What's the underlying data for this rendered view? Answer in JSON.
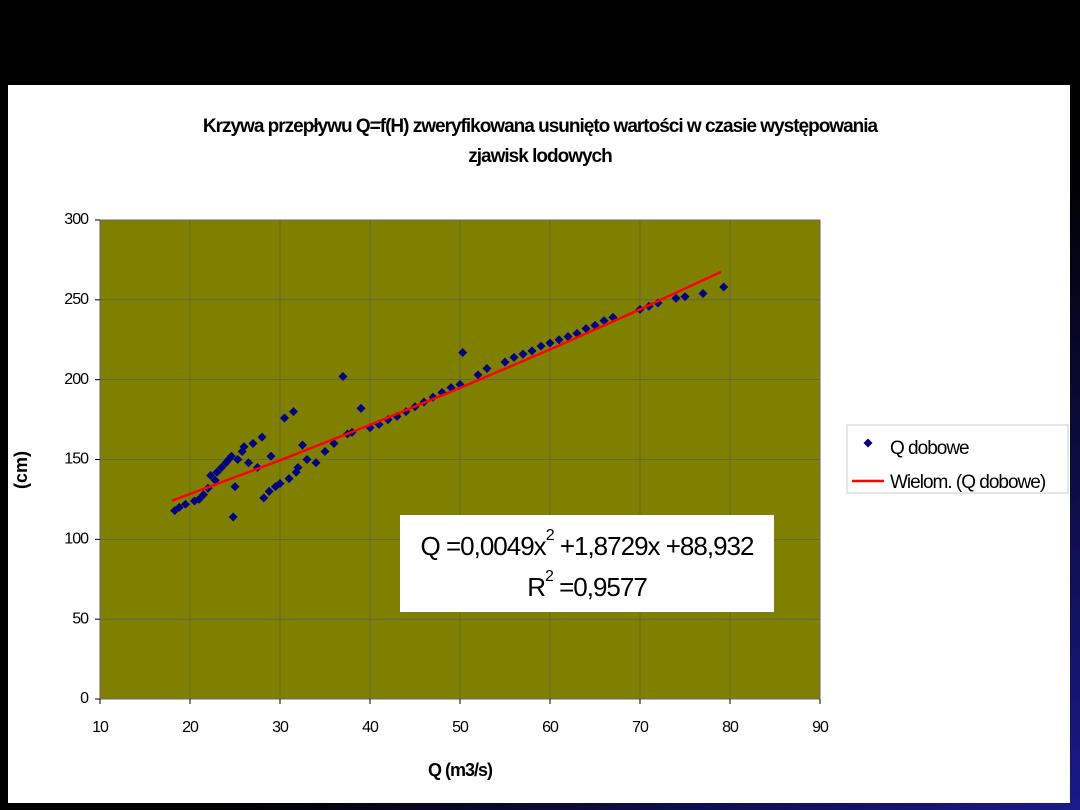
{
  "chart_data": {
    "type": "scatter",
    "title_lines": [
      "Krzywa przepływu   Q=f(H) zweryfikowana usunięto wartości w czasie występowania",
      "zjawisk lodowych"
    ],
    "x_label": "Q (m3/s)",
    "y_label": "(cm)",
    "xlim": [
      10,
      90
    ],
    "xticks": [
      10,
      20,
      30,
      40,
      50,
      60,
      70,
      80,
      90
    ],
    "ylim": [
      0,
      300
    ],
    "yticks": [
      0,
      50,
      100,
      150,
      200,
      250,
      300
    ],
    "grid": true,
    "legend": "right",
    "series": [
      {
        "name": "Q dobowe",
        "color": "#000080",
        "x": [
          18.3,
          18.8,
          19.5,
          20.5,
          21,
          21.5,
          22,
          22.3,
          22.8,
          23,
          23.5,
          24,
          24.3,
          24.6,
          24.8,
          25,
          25.3,
          25.8,
          26,
          26.5,
          27,
          27.5,
          28,
          28.2,
          28.8,
          29,
          29.5,
          30,
          30.5,
          31,
          31.5,
          31.8,
          32,
          32.5,
          33,
          34,
          35,
          36,
          37,
          37.5,
          38,
          39,
          40,
          41,
          42,
          43,
          44,
          45,
          46,
          47,
          48,
          49,
          50,
          50.3,
          52,
          53,
          55,
          56,
          57,
          58,
          59,
          60,
          61,
          62,
          63,
          64,
          65,
          66,
          67,
          70,
          71,
          72,
          74,
          75,
          77,
          79.3
        ],
        "values": [
          118,
          120,
          122,
          124,
          125,
          128,
          132,
          140,
          137,
          142,
          145,
          148,
          150,
          152,
          114,
          133,
          150,
          155,
          158,
          148,
          160,
          145,
          164,
          126,
          130,
          152,
          133,
          135,
          176,
          138,
          180,
          142,
          145,
          159,
          150,
          148,
          155,
          160,
          202,
          166,
          167,
          182,
          170,
          172,
          175,
          177,
          180,
          183,
          186,
          189,
          192,
          195,
          197,
          217,
          203,
          207,
          211,
          214,
          216,
          218,
          221,
          223,
          225,
          227,
          229,
          232,
          234,
          237,
          239,
          244,
          246,
          248,
          251,
          252,
          254,
          258
        ]
      },
      {
        "name": "Wielom. (Q dobowe)",
        "color": "#ff0000",
        "kind": "line",
        "x": [
          18,
          30,
          40,
          50,
          60,
          70,
          79
        ],
        "values": [
          124.2,
          149.5,
          171.7,
          194.8,
          218.9,
          244.0,
          267.5
        ]
      }
    ],
    "annotation": {
      "line1": [
        "Q =0,0049x",
        "2",
        " +1,8729x +88,932"
      ],
      "line2": [
        "R",
        "2",
        " =0,9577"
      ]
    }
  }
}
